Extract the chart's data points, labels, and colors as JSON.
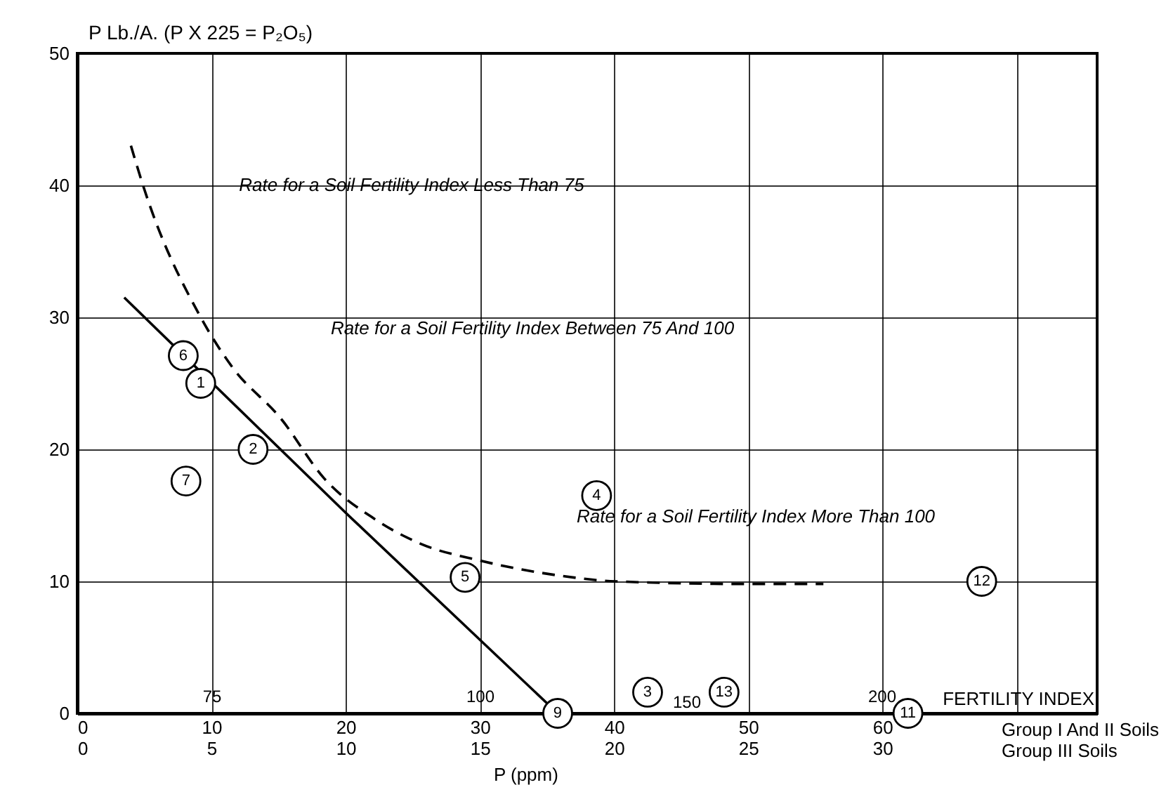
{
  "chart_data": {
    "type": "line",
    "ylabel": "P Lb./A. (P X 225 = P₂O₅)",
    "xlabel": "P (ppm)",
    "xlim": [
      0,
      76
    ],
    "xticks": [
      0,
      10,
      20,
      30,
      40,
      50,
      60,
      {
        "value": 70,
        "label": null
      }
    ],
    "x2lim": [
      0,
      38
    ],
    "x2ticks": [
      0,
      5,
      10,
      15,
      20,
      25,
      30
    ],
    "ylim": [
      0,
      50
    ],
    "yticks": [
      0,
      10,
      20,
      30,
      40,
      50
    ],
    "grid": true,
    "series": [
      {
        "type": "line",
        "line_style": "dashed",
        "color": "#000000",
        "x": [
          4.0,
          4.9,
          9.2,
          11.5,
          15.2,
          18.4,
          22.2,
          25.7,
          29.9,
          36.2,
          40.1,
          50.2,
          55.6
        ],
        "values": [
          43.0,
          40.0,
          30.0,
          26.3,
          22.3,
          17.8,
          14.7,
          12.8,
          11.6,
          10.4,
          10.0,
          9.8,
          9.8
        ]
      },
      {
        "type": "line",
        "line_style": "solid",
        "color": "#000000",
        "x": [
          3.5,
          20.0,
          35.8
        ],
        "values": [
          31.5,
          15.2,
          0
        ]
      },
      {
        "type": "scatter",
        "marker": "circle",
        "color": "#000000",
        "x": [
          9.2,
          13.1,
          42.5,
          38.7,
          28.9,
          7.9,
          8.1,
          35.8,
          61.9,
          67.4,
          48.2
        ],
        "values": [
          25.0,
          20.0,
          1.6,
          16.5,
          10.3,
          27.1,
          17.6,
          0,
          0,
          10.0,
          1.6
        ]
      }
    ],
    "annotations": [
      {
        "text": "1",
        "x": 9.2,
        "y": 25.0
      },
      {
        "text": "2",
        "x": 13.1,
        "y": 20.0
      },
      {
        "text": "3",
        "x": 42.5,
        "y": 1.6
      },
      {
        "text": "4",
        "x": 38.7,
        "y": 16.5
      },
      {
        "text": "5",
        "x": 28.9,
        "y": 10.3
      },
      {
        "text": "6",
        "x": 7.9,
        "y": 27.1
      },
      {
        "text": "7",
        "x": 8.1,
        "y": 17.6
      },
      {
        "text": "9",
        "x": 35.8,
        "y": 0
      },
      {
        "text": "11",
        "x": 61.9,
        "y": 0
      },
      {
        "text": "12",
        "x": 67.4,
        "y": 10.0
      },
      {
        "text": "13",
        "x": 48.2,
        "y": 1.6
      },
      "Rate for a Soil Fertility Index Less Than 75",
      "Rate for a Soil Fertility Index Between 75 And 100",
      "Rate for a Soil Fertility Index More Than 100",
      "75",
      "100",
      "150",
      "200",
      "FERTILITY INDEX",
      "Group I And II Soils",
      "Group III Soils"
    ]
  }
}
